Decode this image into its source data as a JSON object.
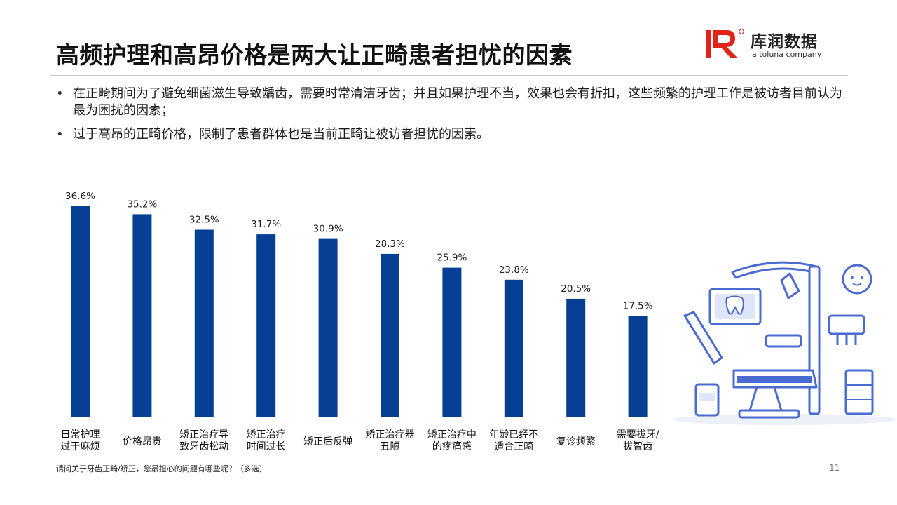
{
  "header": {
    "title": "高频护理和高昂价格是两大让正畸患者担忧的因素",
    "logo_cn": "库润数据",
    "logo_en": "a toluna company"
  },
  "bullets": [
    "在正畸期间为了避免细菌滋生导致龋齿，需要时常清洁牙齿；并且如果护理不当，效果也会有折扣，这些频繁的护理工作是被访者目前认为最为困扰的因素；",
    "过于高昂的正畸价格，限制了患者群体也是当前正畸让被访者担忧的因素。"
  ],
  "chart_data": {
    "type": "bar",
    "categories": [
      [
        "日常护理",
        "过于麻烦"
      ],
      [
        "价格昂贵"
      ],
      [
        "矫正治疗导",
        "致牙齿松动"
      ],
      [
        "矫正治疗",
        "时间过长"
      ],
      [
        "矫正后反弹"
      ],
      [
        "矫正治疗器",
        "丑陋"
      ],
      [
        "矫正治疗中",
        "的疼痛感"
      ],
      [
        "年龄已经不",
        "适合正畸"
      ],
      [
        "复诊频繁"
      ],
      [
        "需要拔牙/",
        "拔智齿"
      ]
    ],
    "values": [
      36.6,
      35.2,
      32.5,
      31.7,
      30.9,
      28.3,
      25.9,
      23.8,
      20.5,
      17.5
    ],
    "data_labels": [
      "36.6%",
      "35.2%",
      "32.5%",
      "31.7%",
      "30.9%",
      "28.3%",
      "25.9%",
      "23.8%",
      "20.5%",
      "17.5%"
    ],
    "ylim": [
      0,
      40
    ],
    "grid": false,
    "bar_color": "#063f93"
  },
  "footnote": "请问关于牙齿正畸/矫正，您最担心的问题有哪些呢？（多选）",
  "page_number": "11",
  "colors": {
    "logo_red": "#e2231a",
    "illustration_blue": "#4a6bd1"
  }
}
